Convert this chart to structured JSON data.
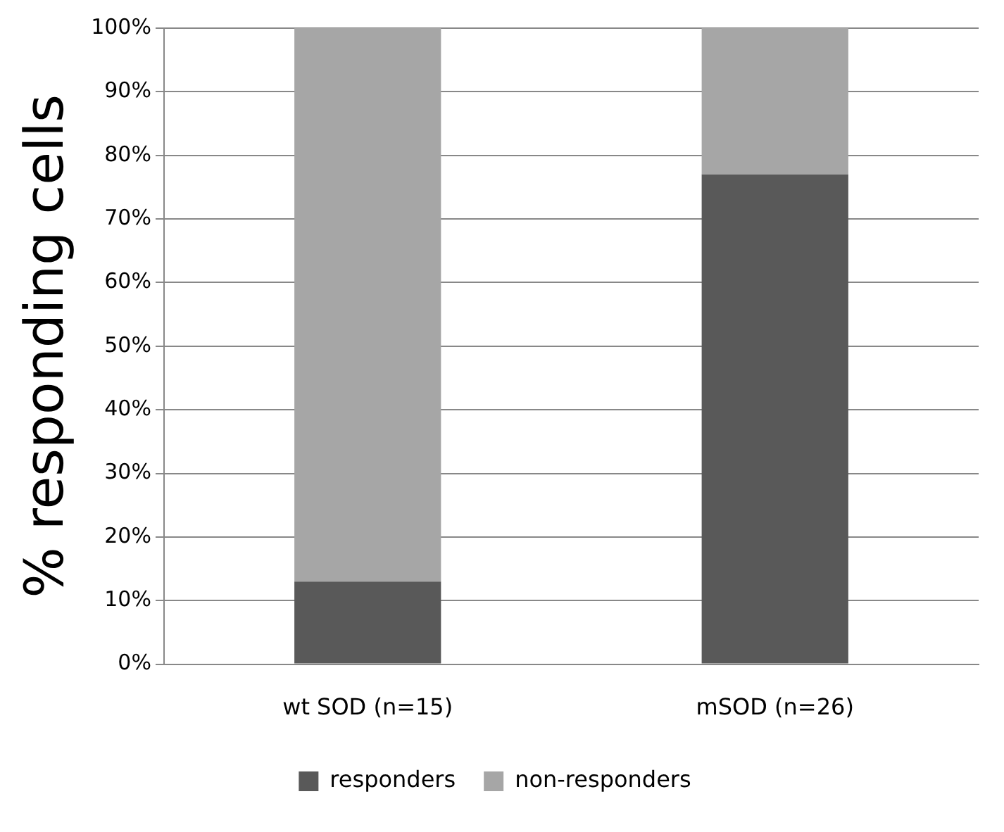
{
  "chart_data": {
    "type": "bar",
    "stacked": true,
    "ylabel": "% responding cells",
    "categories": [
      "wt SOD (n=15)",
      "mSOD (n=26)"
    ],
    "series": [
      {
        "name": "responders",
        "color": "#595959",
        "values": [
          13,
          77
        ]
      },
      {
        "name": "non-responders",
        "color": "#a6a6a6",
        "values": [
          87,
          23
        ]
      }
    ],
    "ylim": [
      0,
      100
    ],
    "yticks": [
      {
        "value": 0,
        "label": "0%"
      },
      {
        "value": 10,
        "label": "10%"
      },
      {
        "value": 20,
        "label": "20%"
      },
      {
        "value": 30,
        "label": "30%"
      },
      {
        "value": 40,
        "label": "40%"
      },
      {
        "value": 50,
        "label": "50%"
      },
      {
        "value": 60,
        "label": "60%"
      },
      {
        "value": 70,
        "label": "70%"
      },
      {
        "value": 80,
        "label": "80%"
      },
      {
        "value": 90,
        "label": "90%"
      },
      {
        "value": 100,
        "label": "100%"
      }
    ],
    "grid": "y",
    "legend": "bottom"
  }
}
